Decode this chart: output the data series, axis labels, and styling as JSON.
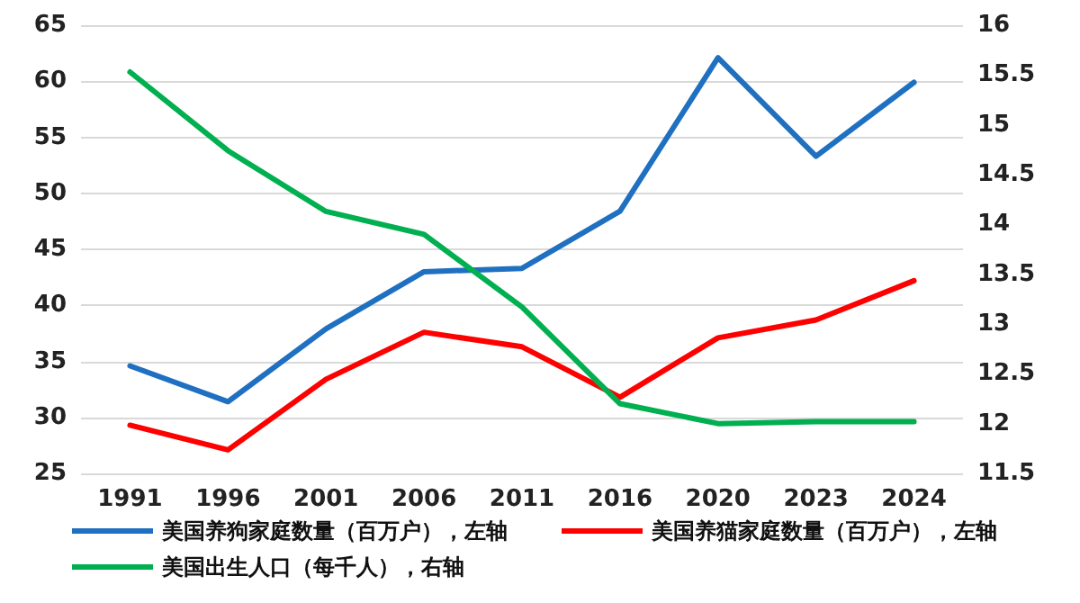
{
  "chart_data": {
    "type": "line",
    "categories": [
      "1991",
      "1996",
      "2001",
      "2006",
      "2011",
      "2016",
      "2020",
      "2023",
      "2024"
    ],
    "series": [
      {
        "name": "美国养狗家庭数量（百万户），左轴",
        "color": "#1f70c1",
        "values": [
          34.6,
          31.4,
          37.9,
          43.0,
          43.3,
          48.4,
          62.1,
          53.3,
          59.9
        ]
      },
      {
        "name": "美国养猫家庭数量（百万户），左轴",
        "color": "#ff0000",
        "values": [
          29.3,
          27.1,
          33.4,
          37.6,
          36.3,
          31.8,
          37.1,
          38.7,
          42.2
        ]
      },
      {
        "name": "美国出生人口（每千人），右轴",
        "color": "#00b050",
        "axis": "y2",
        "values": [
          15.53,
          14.74,
          14.13,
          13.9,
          13.17,
          12.2,
          12.0,
          12.02,
          12.02
        ]
      }
    ],
    "ylim": [
      25,
      65
    ],
    "yticks": [
      25,
      30,
      35,
      40,
      45,
      50,
      55,
      60,
      65
    ],
    "y2lim": [
      11.5,
      16
    ],
    "y2ticks": [
      11.5,
      12,
      12.5,
      13,
      13.5,
      14,
      14.5,
      15,
      15.5,
      16
    ],
    "grid": "y",
    "legend": "bottom",
    "marker": "none",
    "line_style": "solid"
  }
}
